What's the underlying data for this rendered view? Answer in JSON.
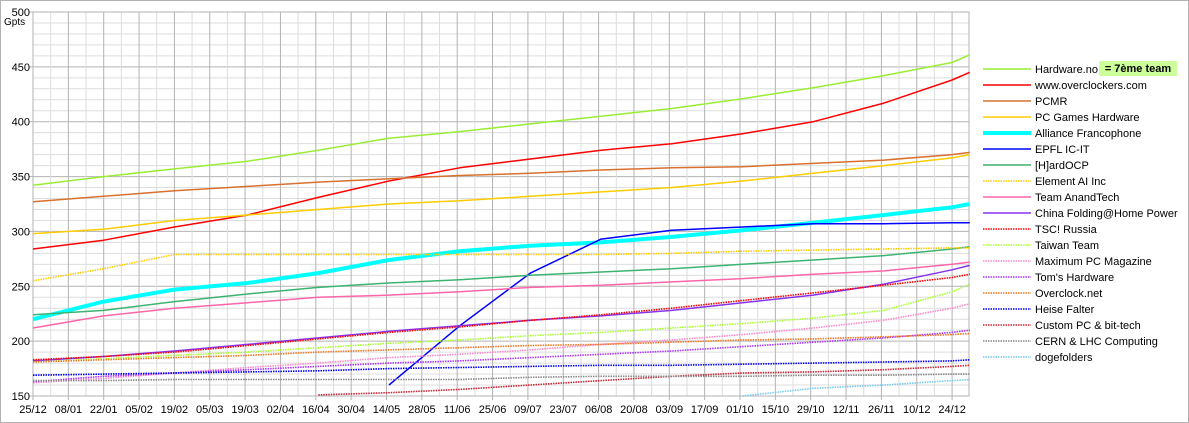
{
  "chart_data": {
    "type": "line",
    "ylabel": "Gpts",
    "ylim": [
      150,
      500
    ],
    "yticks": [
      150,
      200,
      250,
      300,
      350,
      400,
      450,
      500
    ],
    "grid": true,
    "legend_placement": "right",
    "xtick_labels": [
      "25/12",
      "08/01",
      "22/01",
      "05/02",
      "19/02",
      "05/03",
      "19/03",
      "02/04",
      "16/04",
      "30/04",
      "14/05",
      "28/05",
      "11/06",
      "25/06",
      "09/07",
      "23/07",
      "06/08",
      "20/08",
      "03/09",
      "17/09",
      "01/10",
      "15/10",
      "29/10",
      "12/11",
      "26/11",
      "10/12",
      "24/12"
    ],
    "x": [
      "25/12",
      "22/01",
      "19/02",
      "19/03",
      "16/04",
      "14/05",
      "11/06",
      "09/07",
      "06/08",
      "03/09",
      "01/10",
      "29/10",
      "26/11",
      "24/12",
      "31/12"
    ],
    "annotation": "= 7ème team",
    "annotation_color": "#ccff99",
    "series": [
      {
        "name": "Hardware.no",
        "color": "#99ee33",
        "style": "solid",
        "values": [
          342,
          350,
          357,
          364,
          374,
          385,
          391,
          398,
          405,
          412,
          421,
          431,
          442,
          454,
          461
        ]
      },
      {
        "name": "www.overclockers.com",
        "color": "#ff0000",
        "style": "solid",
        "values": [
          284,
          292,
          304,
          315,
          331,
          346,
          358,
          366,
          374,
          380,
          389,
          400,
          417,
          438,
          445
        ]
      },
      {
        "name": "PCMR",
        "color": "#d9702e",
        "style": "solid",
        "values": [
          327,
          332,
          337,
          341,
          345,
          348,
          351,
          353,
          356,
          358,
          359,
          362,
          365,
          370,
          372
        ]
      },
      {
        "name": "PC Games Hardware",
        "color": "#ffcc00",
        "style": "solid",
        "values": [
          298,
          302,
          310,
          315,
          320,
          325,
          328,
          332,
          336,
          340,
          346,
          353,
          360,
          367,
          370
        ]
      },
      {
        "name": "Alliance Francophone",
        "color": "#00ffff",
        "style": "thick",
        "values": [
          220,
          236,
          247,
          253,
          262,
          274,
          282,
          287,
          290,
          295,
          301,
          308,
          315,
          322,
          325
        ]
      },
      {
        "name": "EPFL IC-IT",
        "color": "#0000ff",
        "style": "solid",
        "values": [
          null,
          null,
          null,
          null,
          null,
          160,
          214,
          262,
          293,
          301,
          304,
          307,
          307,
          308,
          308
        ]
      },
      {
        "name": "[H]ardOCP",
        "color": "#3cb371",
        "style": "solid",
        "values": [
          224,
          228,
          236,
          243,
          249,
          253,
          256,
          260,
          263,
          266,
          270,
          274,
          278,
          284,
          286
        ]
      },
      {
        "name": "Element AI Inc",
        "color": "#ffcc00",
        "style": "dotted",
        "values": [
          255,
          266,
          279,
          279,
          279,
          279,
          279,
          279,
          279,
          280,
          282,
          283,
          284,
          285,
          285
        ]
      },
      {
        "name": "Team AnandTech",
        "color": "#ff66aa",
        "style": "solid",
        "values": [
          212,
          223,
          230,
          235,
          240,
          242,
          245,
          249,
          251,
          254,
          257,
          261,
          264,
          270,
          272
        ]
      },
      {
        "name": "China Folding@Home Power",
        "color": "#8833ee",
        "style": "solid",
        "values": [
          182,
          186,
          191,
          197,
          203,
          209,
          214,
          219,
          223,
          228,
          235,
          242,
          252,
          265,
          269
        ]
      },
      {
        "name": "TSC! Russia",
        "color": "#ff0000",
        "style": "dotted",
        "values": [
          183,
          186,
          190,
          196,
          202,
          208,
          213,
          219,
          224,
          230,
          237,
          244,
          251,
          258,
          261
        ]
      },
      {
        "name": "Taiwan Team",
        "color": "#aaff33",
        "style": "dotted",
        "values": [
          181,
          184,
          187,
          190,
          194,
          198,
          201,
          205,
          208,
          212,
          216,
          221,
          228,
          245,
          252
        ]
      },
      {
        "name": "Maximum PC Magazine",
        "color": "#ff88cc",
        "style": "dotted",
        "values": [
          162,
          166,
          171,
          176,
          180,
          185,
          188,
          192,
          197,
          201,
          206,
          212,
          219,
          230,
          234
        ]
      },
      {
        "name": "Tom's Hardware",
        "color": "#aa33ff",
        "style": "dotted",
        "values": [
          163,
          168,
          171,
          174,
          177,
          180,
          182,
          185,
          188,
          191,
          195,
          199,
          203,
          208,
          210
        ]
      },
      {
        "name": "Overclock.net",
        "color": "#ee7722",
        "style": "dotted",
        "values": [
          181,
          183,
          185,
          187,
          190,
          192,
          194,
          196,
          197,
          199,
          201,
          202,
          204,
          206,
          207
        ]
      },
      {
        "name": "Heise Falter",
        "color": "#0000ee",
        "style": "dotted",
        "values": [
          169,
          170,
          171,
          172,
          173,
          175,
          176,
          177,
          178,
          178,
          179,
          180,
          181,
          182,
          183
        ]
      },
      {
        "name": "Custom PC & bit-tech",
        "color": "#cc2233",
        "style": "dotted",
        "values": [
          null,
          null,
          null,
          null,
          151,
          153,
          156,
          160,
          164,
          168,
          171,
          172,
          174,
          177,
          178
        ]
      },
      {
        "name": "CERN & LHC Computing",
        "color": "#888888",
        "style": "dotted",
        "values": [
          164,
          164,
          165,
          165,
          165,
          165,
          165,
          167,
          168,
          168,
          168,
          169,
          169,
          170,
          170
        ]
      },
      {
        "name": "dogefolders",
        "color": "#77ccee",
        "style": "dotted",
        "values": [
          null,
          null,
          null,
          null,
          null,
          null,
          null,
          null,
          null,
          null,
          150,
          157,
          160,
          164,
          165
        ]
      }
    ]
  }
}
